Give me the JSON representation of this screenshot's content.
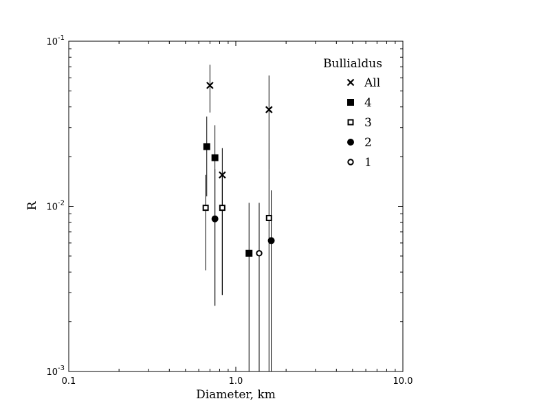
{
  "chart_data": {
    "type": "scatter",
    "xscale": "log",
    "yscale": "log",
    "xlim": [
      0.1,
      10.0
    ],
    "ylim": [
      0.001,
      0.1
    ],
    "xlabel": "Diameter, km",
    "ylabel": "R",
    "grid": false,
    "x_ticks": [
      {
        "value": 0.1,
        "label": "0.1"
      },
      {
        "value": 1.0,
        "label": "1.0"
      },
      {
        "value": 10.0,
        "label": "10.0"
      }
    ],
    "y_ticks": [
      {
        "value": 0.001,
        "base": "10",
        "exp": "-3"
      },
      {
        "value": 0.01,
        "base": "10",
        "exp": "-2"
      },
      {
        "value": 0.1,
        "base": "10",
        "exp": "-1"
      }
    ],
    "legend": {
      "title": "Bullialdus",
      "position": "top-right"
    },
    "series": [
      {
        "name": "All",
        "marker": "x",
        "points": [
          {
            "x": 0.7,
            "y": 0.054,
            "err_lo": 0.037,
            "err_hi": 0.072
          },
          {
            "x": 0.83,
            "y": 0.0155,
            "err_lo": 0.0029,
            "err_hi": 0.0225
          },
          {
            "x": 1.58,
            "y": 0.0385,
            "err_lo": 0.0168,
            "err_hi": 0.062
          }
        ]
      },
      {
        "name": "4",
        "marker": "square-filled",
        "points": [
          {
            "x": 0.67,
            "y": 0.023,
            "err_lo": 0.0115,
            "err_hi": 0.035
          },
          {
            "x": 0.75,
            "y": 0.0197,
            "err_lo": 0.0025,
            "err_hi": 0.031
          },
          {
            "x": 1.2,
            "y": 0.0052,
            "err_lo": 0.0008,
            "err_hi": 0.0105
          }
        ]
      },
      {
        "name": "3",
        "marker": "square-open",
        "points": [
          {
            "x": 0.66,
            "y": 0.0098,
            "err_lo": 0.0041,
            "err_hi": 0.0155
          },
          {
            "x": 0.83,
            "y": 0.0098,
            "err_lo": 0.0029,
            "err_hi": 0.0155
          },
          {
            "x": 1.58,
            "y": 0.0085,
            "err_lo": 0.0008,
            "err_hi": 0.0168
          }
        ]
      },
      {
        "name": "2",
        "marker": "circle-filled",
        "points": [
          {
            "x": 0.75,
            "y": 0.0084,
            "err_lo": 0.0025,
            "err_hi": 0.0168
          },
          {
            "x": 1.63,
            "y": 0.0062,
            "err_lo": 0.0008,
            "err_hi": 0.0125
          }
        ]
      },
      {
        "name": "1",
        "marker": "circle-open",
        "points": [
          {
            "x": 1.38,
            "y": 0.0052,
            "err_lo": 0.0008,
            "err_hi": 0.0105
          }
        ]
      }
    ]
  }
}
